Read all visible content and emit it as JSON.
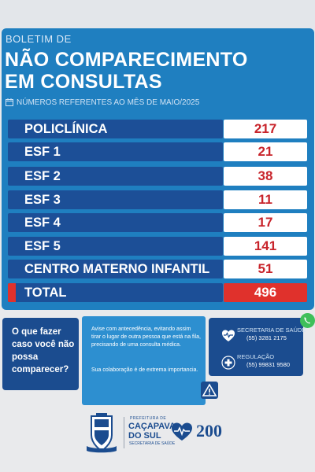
{
  "header": {
    "kicker": "BOLETIM DE",
    "title_line1": "NÃO COMPARECIMENTO",
    "title_line2": "EM CONSULTAS",
    "subtitle": "NÚMEROS REFERENTES AO MÊS DE MAIO/2025"
  },
  "table": {
    "rows": [
      {
        "label": "POLICLÍNICA",
        "value": "217"
      },
      {
        "label": "ESF 1",
        "value": "21"
      },
      {
        "label": "ESF 2",
        "value": "38"
      },
      {
        "label": "ESF 3",
        "value": "11"
      },
      {
        "label": "ESF 4",
        "value": "17"
      },
      {
        "label": "ESF 5",
        "value": "141"
      },
      {
        "label": "CENTRO MATERNO INFANTIL",
        "value": "51"
      }
    ],
    "total": {
      "label": "TOTAL",
      "value": "496"
    }
  },
  "question": "O que fazer caso você não possa comparecer?",
  "advice": {
    "p1": "Avise com antecedência, evitando assim tirar o lugar de outra pessoa que está na fila, precisando de uma consulta médica.",
    "p2": "Sua colaboração é de extrema importancia."
  },
  "contacts": [
    {
      "label": "SECRETARIA DE SAÚDE",
      "number": "(55) 3281 2175",
      "icon": "heart-pulse-icon"
    },
    {
      "label": "REGULAÇÃO",
      "number": "(55) 99831 9580",
      "icon": "medical-cross-icon"
    }
  ],
  "footer": {
    "line1": "PREFEITURA DE",
    "line2": "CAÇAPAVA",
    "line3": "DO SUL",
    "line4": "SECRETARIA DE SAÚDE",
    "anniversary": "200"
  },
  "colors": {
    "panel": "#1f7fc0",
    "row_label": "#1c4f97",
    "value_red": "#c8242b",
    "total_red": "#e0312c"
  }
}
